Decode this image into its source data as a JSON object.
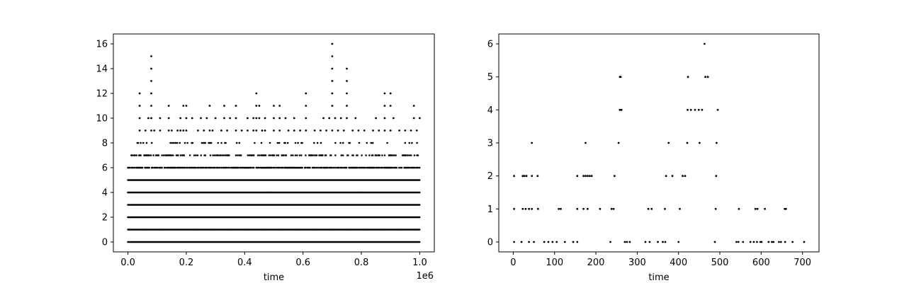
{
  "chart_data": [
    {
      "type": "scatter",
      "title": "",
      "xlabel": "time",
      "ylabel": "",
      "x_offset_label": "1e6",
      "xlim": [
        -0.05,
        1.05
      ],
      "ylim": [
        -0.8,
        16.8
      ],
      "xticks": [
        0.0,
        0.2,
        0.4,
        0.6,
        0.8,
        1.0
      ],
      "xtick_labels": [
        "0.0",
        "0.2",
        "0.4",
        "0.6",
        "0.8",
        "1.0"
      ],
      "yticks": [
        0,
        2,
        4,
        6,
        8,
        10,
        12,
        14,
        16
      ],
      "ytick_labels": [
        "0",
        "2",
        "4",
        "6",
        "8",
        "10",
        "12",
        "14",
        "16"
      ],
      "grid": false,
      "marker_color": "#000000",
      "dense_levels": [
        {
          "y": 0,
          "density": 1.0
        },
        {
          "y": 1,
          "density": 1.0
        },
        {
          "y": 2,
          "density": 1.0
        },
        {
          "y": 3,
          "density": 1.0
        },
        {
          "y": 4,
          "density": 1.0
        },
        {
          "y": 5,
          "density": 1.0
        },
        {
          "y": 6,
          "density": 0.8
        },
        {
          "y": 7,
          "density": 0.45
        },
        {
          "y": 8,
          "density": 0.15
        }
      ],
      "sparse_points": [
        [
          0.04,
          9
        ],
        [
          0.06,
          9
        ],
        [
          0.07,
          10
        ],
        [
          0.08,
          9
        ],
        [
          0.09,
          9
        ],
        [
          0.11,
          9
        ],
        [
          0.14,
          9
        ],
        [
          0.15,
          9
        ],
        [
          0.17,
          9
        ],
        [
          0.18,
          9
        ],
        [
          0.19,
          9
        ],
        [
          0.2,
          9
        ],
        [
          0.24,
          9
        ],
        [
          0.26,
          9
        ],
        [
          0.28,
          9
        ],
        [
          0.29,
          9
        ],
        [
          0.32,
          9
        ],
        [
          0.34,
          9
        ],
        [
          0.37,
          9
        ],
        [
          0.39,
          9
        ],
        [
          0.41,
          9
        ],
        [
          0.43,
          9
        ],
        [
          0.44,
          9
        ],
        [
          0.46,
          9
        ],
        [
          0.47,
          9
        ],
        [
          0.5,
          9
        ],
        [
          0.52,
          9
        ],
        [
          0.55,
          9
        ],
        [
          0.57,
          9
        ],
        [
          0.59,
          9
        ],
        [
          0.61,
          9
        ],
        [
          0.64,
          9
        ],
        [
          0.66,
          9
        ],
        [
          0.68,
          9
        ],
        [
          0.7,
          9
        ],
        [
          0.72,
          9
        ],
        [
          0.74,
          9
        ],
        [
          0.77,
          9
        ],
        [
          0.79,
          9
        ],
        [
          0.81,
          9
        ],
        [
          0.84,
          9
        ],
        [
          0.86,
          9
        ],
        [
          0.88,
          9
        ],
        [
          0.9,
          9
        ],
        [
          0.93,
          9
        ],
        [
          0.95,
          9
        ],
        [
          0.97,
          9
        ],
        [
          0.99,
          9
        ],
        [
          0.04,
          10
        ],
        [
          0.08,
          10
        ],
        [
          0.11,
          10
        ],
        [
          0.14,
          10
        ],
        [
          0.18,
          10
        ],
        [
          0.2,
          10
        ],
        [
          0.22,
          10
        ],
        [
          0.25,
          10
        ],
        [
          0.27,
          10
        ],
        [
          0.3,
          10
        ],
        [
          0.33,
          10
        ],
        [
          0.35,
          10
        ],
        [
          0.37,
          10
        ],
        [
          0.41,
          10
        ],
        [
          0.43,
          10
        ],
        [
          0.44,
          10
        ],
        [
          0.45,
          10
        ],
        [
          0.47,
          10
        ],
        [
          0.5,
          10
        ],
        [
          0.52,
          10
        ],
        [
          0.54,
          10
        ],
        [
          0.57,
          10
        ],
        [
          0.61,
          10
        ],
        [
          0.67,
          10
        ],
        [
          0.69,
          10
        ],
        [
          0.71,
          10
        ],
        [
          0.73,
          10
        ],
        [
          0.75,
          10
        ],
        [
          0.78,
          10
        ],
        [
          0.85,
          10
        ],
        [
          0.88,
          10
        ],
        [
          0.91,
          10
        ],
        [
          0.98,
          10
        ],
        [
          1.0,
          10
        ],
        [
          0.04,
          11
        ],
        [
          0.08,
          11
        ],
        [
          0.14,
          11
        ],
        [
          0.19,
          11
        ],
        [
          0.2,
          11
        ],
        [
          0.28,
          11
        ],
        [
          0.33,
          11
        ],
        [
          0.37,
          11
        ],
        [
          0.44,
          11
        ],
        [
          0.45,
          11
        ],
        [
          0.5,
          11
        ],
        [
          0.52,
          11
        ],
        [
          0.61,
          11
        ],
        [
          0.7,
          11
        ],
        [
          0.75,
          11
        ],
        [
          0.88,
          11
        ],
        [
          0.9,
          11
        ],
        [
          0.98,
          11
        ],
        [
          0.04,
          12
        ],
        [
          0.08,
          12
        ],
        [
          0.44,
          12
        ],
        [
          0.61,
          12
        ],
        [
          0.7,
          12
        ],
        [
          0.75,
          12
        ],
        [
          0.88,
          12
        ],
        [
          0.9,
          12
        ],
        [
          0.08,
          13
        ],
        [
          0.7,
          13
        ],
        [
          0.75,
          13
        ],
        [
          0.08,
          14
        ],
        [
          0.7,
          14
        ],
        [
          0.75,
          14
        ],
        [
          0.08,
          15
        ],
        [
          0.7,
          15
        ],
        [
          0.7,
          16
        ]
      ]
    },
    {
      "type": "scatter",
      "title": "",
      "xlabel": "time",
      "ylabel": "",
      "xlim": [
        -35,
        740
      ],
      "ylim": [
        -0.3,
        6.3
      ],
      "xticks": [
        0,
        100,
        200,
        300,
        400,
        500,
        600,
        700
      ],
      "xtick_labels": [
        "0",
        "100",
        "200",
        "300",
        "400",
        "500",
        "600",
        "700"
      ],
      "yticks": [
        0,
        1,
        2,
        3,
        4,
        5,
        6
      ],
      "ytick_labels": [
        "0",
        "1",
        "2",
        "3",
        "4",
        "5",
        "6"
      ],
      "grid": false,
      "marker_color": "#000000",
      "points": [
        [
          2,
          0
        ],
        [
          20,
          0
        ],
        [
          38,
          0
        ],
        [
          50,
          0
        ],
        [
          75,
          0
        ],
        [
          85,
          0
        ],
        [
          95,
          0
        ],
        [
          105,
          0
        ],
        [
          125,
          0
        ],
        [
          145,
          0
        ],
        [
          155,
          0
        ],
        [
          235,
          0
        ],
        [
          270,
          0
        ],
        [
          275,
          0
        ],
        [
          282,
          0
        ],
        [
          320,
          0
        ],
        [
          330,
          0
        ],
        [
          350,
          0
        ],
        [
          362,
          0
        ],
        [
          368,
          0
        ],
        [
          400,
          0
        ],
        [
          488,
          0
        ],
        [
          540,
          0
        ],
        [
          545,
          0
        ],
        [
          556,
          0
        ],
        [
          574,
          0
        ],
        [
          582,
          0
        ],
        [
          590,
          0
        ],
        [
          598,
          0
        ],
        [
          601,
          0
        ],
        [
          618,
          0
        ],
        [
          626,
          0
        ],
        [
          630,
          0
        ],
        [
          643,
          0
        ],
        [
          648,
          0
        ],
        [
          658,
          0
        ],
        [
          676,
          0
        ],
        [
          704,
          0
        ],
        [
          2,
          1
        ],
        [
          23,
          1
        ],
        [
          30,
          1
        ],
        [
          38,
          1
        ],
        [
          45,
          1
        ],
        [
          60,
          1
        ],
        [
          110,
          1
        ],
        [
          115,
          1
        ],
        [
          155,
          1
        ],
        [
          170,
          1
        ],
        [
          180,
          1
        ],
        [
          210,
          1
        ],
        [
          238,
          1
        ],
        [
          243,
          1
        ],
        [
          327,
          1
        ],
        [
          335,
          1
        ],
        [
          367,
          1
        ],
        [
          403,
          1
        ],
        [
          490,
          1
        ],
        [
          546,
          1
        ],
        [
          586,
          1
        ],
        [
          591,
          1
        ],
        [
          609,
          1
        ],
        [
          657,
          1
        ],
        [
          660,
          1
        ],
        [
          2,
          2
        ],
        [
          23,
          2
        ],
        [
          27,
          2
        ],
        [
          32,
          2
        ],
        [
          45,
          2
        ],
        [
          59,
          2
        ],
        [
          155,
          2
        ],
        [
          170,
          2
        ],
        [
          175,
          2
        ],
        [
          180,
          2
        ],
        [
          185,
          2
        ],
        [
          190,
          2
        ],
        [
          245,
          2
        ],
        [
          370,
          2
        ],
        [
          385,
          2
        ],
        [
          410,
          2
        ],
        [
          416,
          2
        ],
        [
          491,
          2
        ],
        [
          45,
          3
        ],
        [
          175,
          3
        ],
        [
          255,
          3
        ],
        [
          376,
          3
        ],
        [
          421,
          3
        ],
        [
          451,
          3
        ],
        [
          492,
          3
        ],
        [
          258,
          4
        ],
        [
          262,
          4
        ],
        [
          422,
          4
        ],
        [
          430,
          4
        ],
        [
          440,
          4
        ],
        [
          449,
          4
        ],
        [
          457,
          4
        ],
        [
          495,
          4
        ],
        [
          258,
          5
        ],
        [
          260,
          5
        ],
        [
          423,
          5
        ],
        [
          465,
          5
        ],
        [
          471,
          5
        ],
        [
          463,
          6
        ]
      ]
    }
  ]
}
